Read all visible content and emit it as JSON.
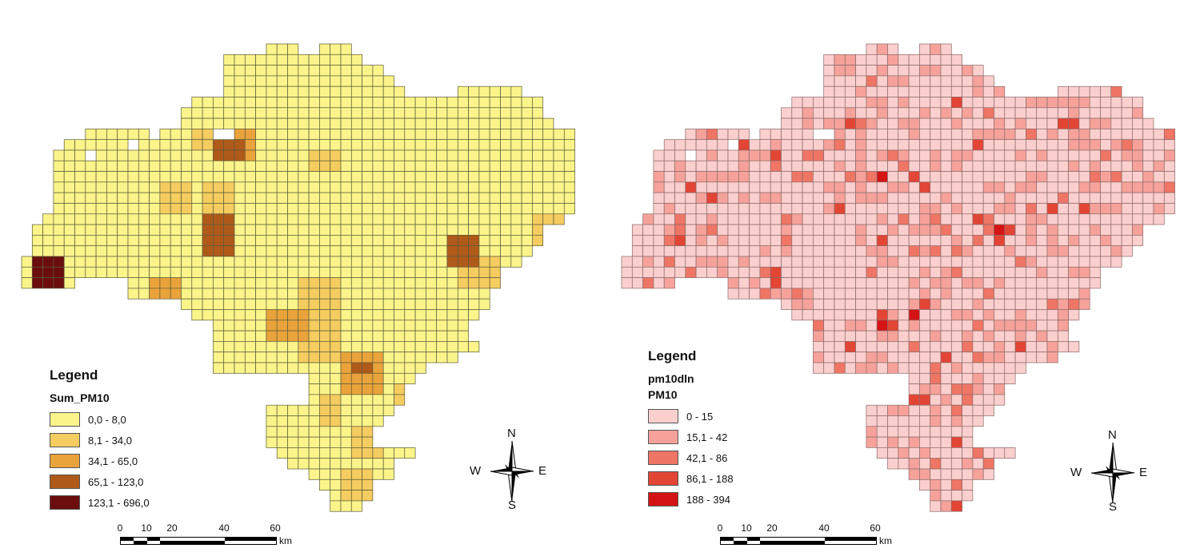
{
  "maps": [
    {
      "legend": {
        "title": "Legend",
        "field": "Sum_PM10",
        "subtitle": "",
        "classes": [
          {
            "label": "0,0 - 8,0",
            "color": "#fbf48a"
          },
          {
            "label": "8,1 - 34,0",
            "color": "#f5cc5f"
          },
          {
            "label": "34,1 - 65,0",
            "color": "#eaa33a"
          },
          {
            "label": "65,1 - 123,0",
            "color": "#b05a1a"
          },
          {
            "label": "123,1 - 696,0",
            "color": "#6b0d0d"
          }
        ]
      },
      "scale": {
        "ticks": [
          "0",
          "10",
          "20",
          "40",
          "60"
        ],
        "unit": "km"
      },
      "north": {
        "n": "N",
        "s": "S",
        "e": "E",
        "w": "W"
      }
    },
    {
      "legend": {
        "title": "Legend",
        "field": "pm10dln",
        "subtitle": "PM10",
        "classes": [
          {
            "label": "0 - 15",
            "color": "#fbcfcd"
          },
          {
            "label": "15,1 - 42",
            "color": "#f6a29a"
          },
          {
            "label": "42,1 - 86",
            "color": "#ef7565"
          },
          {
            "label": "86,1 - 188",
            "color": "#e34535"
          },
          {
            "label": "188 - 394",
            "color": "#d41414"
          }
        ]
      },
      "scale": {
        "ticks": [
          "0",
          "10",
          "20",
          "40",
          "60"
        ],
        "unit": "km"
      },
      "north": {
        "n": "N",
        "s": "S",
        "e": "E",
        "w": "W"
      }
    }
  ]
}
